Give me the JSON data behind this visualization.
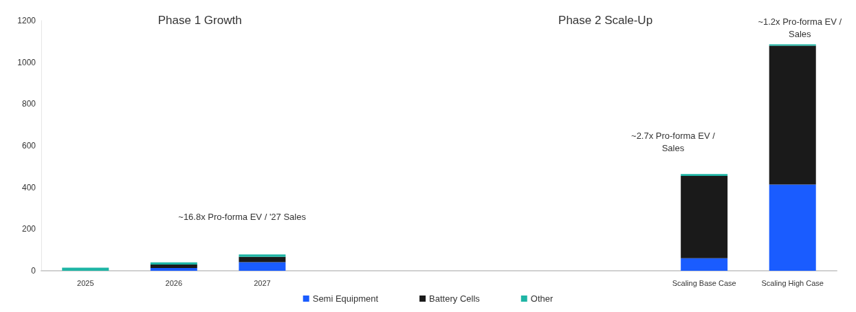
{
  "chart_data": {
    "type": "bar",
    "stacked": true,
    "categories": [
      "2025",
      "2026",
      "2027",
      null,
      null,
      null,
      null,
      "Scaling Base Case",
      "Scaling High Case"
    ],
    "series": [
      {
        "name": "Semi Equipment",
        "color": "#1a5cff",
        "values": [
          0,
          13,
          41,
          null,
          null,
          null,
          null,
          60,
          414
        ]
      },
      {
        "name": "Battery Cells",
        "color": "#1a1a1a",
        "values": [
          0,
          17,
          26,
          null,
          null,
          null,
          null,
          395,
          666
        ]
      },
      {
        "name": "Other",
        "color": "#1fb5a5",
        "values": [
          15,
          10,
          11,
          null,
          null,
          null,
          null,
          9,
          6
        ]
      }
    ],
    "ylim": [
      0,
      1200
    ],
    "yticks": [
      0,
      200,
      400,
      600,
      800,
      1000,
      1200
    ],
    "grid": false,
    "legend": "bottom",
    "annotations": [
      "Phase 1 Growth",
      "Phase 2 Scale-Up",
      "~16.8x Pro-forma EV / '27 Sales",
      "~2.7x Pro-forma EV /\nSales",
      "~1.2x Pro-forma EV /\nSales"
    ]
  }
}
